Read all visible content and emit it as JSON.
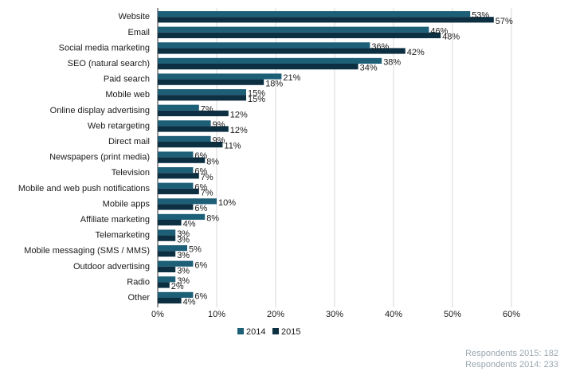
{
  "chart_data": {
    "type": "bar",
    "orientation": "horizontal",
    "categories": [
      "Website",
      "Email",
      "Social media marketing",
      "SEO (natural search)",
      "Paid search",
      "Mobile web",
      "Online display advertising",
      "Web retargeting",
      "Direct mail",
      "Newspapers (print media)",
      "Television",
      "Mobile and web push notifications",
      "Mobile apps",
      "Affiliate marketing",
      "Telemarketing",
      "Mobile messaging (SMS / MMS)",
      "Outdoor advertising",
      "Radio",
      "Other"
    ],
    "series": [
      {
        "name": "2014",
        "color": "#1e5f78",
        "values": [
          53,
          46,
          36,
          38,
          21,
          15,
          7,
          9,
          9,
          6,
          6,
          6,
          10,
          8,
          3,
          5,
          6,
          3,
          6
        ]
      },
      {
        "name": "2015",
        "color": "#0c2f42",
        "values": [
          57,
          48,
          42,
          34,
          18,
          15,
          12,
          12,
          11,
          8,
          7,
          7,
          6,
          4,
          3,
          3,
          3,
          2,
          4
        ]
      }
    ],
    "value_suffix": "%",
    "xlim": [
      0,
      60
    ],
    "xticks": [
      "0%",
      "10%",
      "20%",
      "30%",
      "40%",
      "50%",
      "60%"
    ],
    "legend_position": "bottom-center",
    "grid": true
  },
  "footnotes": {
    "respondents_2015": "Respondents 2015: 182",
    "respondents_2014": "Respondents 2014: 233"
  }
}
